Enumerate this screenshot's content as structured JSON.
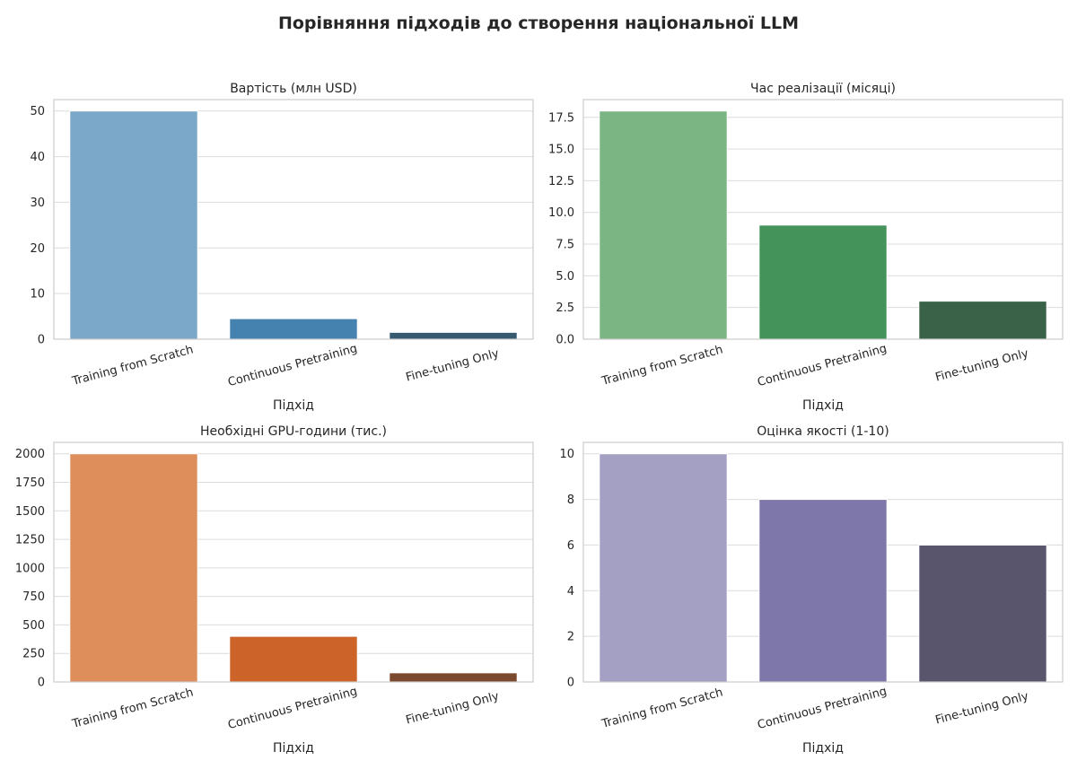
{
  "figure": {
    "title": "Порівняння підходів до створення національної LLM"
  },
  "chart_data": [
    {
      "type": "bar",
      "title": "Вартість (млн USD)",
      "xlabel": "Підхід",
      "ylabel": "",
      "categories": [
        "Training from Scratch",
        "Continuous Pretraining",
        "Fine-tuning Only"
      ],
      "values": [
        50,
        4.5,
        1.5
      ],
      "ylim": [
        0,
        52.5
      ],
      "yticks": [
        0,
        10,
        20,
        30,
        40,
        50
      ],
      "ytick_labels": [
        "0",
        "10",
        "20",
        "30",
        "40",
        "50"
      ],
      "colors": [
        "#7ba8c8",
        "#4682b0",
        "#385a70"
      ],
      "grid": true
    },
    {
      "type": "bar",
      "title": "Час реалізації (місяці)",
      "xlabel": "Підхід",
      "ylabel": "",
      "categories": [
        "Training from Scratch",
        "Continuous Pretraining",
        "Fine-tuning Only"
      ],
      "values": [
        18,
        9,
        3
      ],
      "ylim": [
        0,
        18.9
      ],
      "yticks": [
        0,
        2.5,
        5,
        7.5,
        10,
        12.5,
        15,
        17.5
      ],
      "ytick_labels": [
        "0.0",
        "2.5",
        "5.0",
        "7.5",
        "10.0",
        "12.5",
        "15.0",
        "17.5"
      ],
      "colors": [
        "#7bb583",
        "#44935a",
        "#3a6248"
      ],
      "grid": true
    },
    {
      "type": "bar",
      "title": "Необхідні GPU-години (тис.)",
      "xlabel": "Підхід",
      "ylabel": "",
      "categories": [
        "Training from Scratch",
        "Continuous Pretraining",
        "Fine-tuning Only"
      ],
      "values": [
        2000,
        400,
        80
      ],
      "ylim": [
        0,
        2100
      ],
      "yticks": [
        0,
        250,
        500,
        750,
        1000,
        1250,
        1500,
        1750,
        2000
      ],
      "ytick_labels": [
        "0",
        "250",
        "500",
        "750",
        "1000",
        "1250",
        "1500",
        "1750",
        "2000"
      ],
      "colors": [
        "#de8e5b",
        "#cc6429",
        "#7b4a2e"
      ],
      "grid": true
    },
    {
      "type": "bar",
      "title": "Оцінка якості (1-10)",
      "xlabel": "Підхід",
      "ylabel": "",
      "categories": [
        "Training from Scratch",
        "Continuous Pretraining",
        "Fine-tuning Only"
      ],
      "values": [
        10,
        8,
        6
      ],
      "ylim": [
        0,
        10.5
      ],
      "yticks": [
        0,
        2,
        4,
        6,
        8,
        10
      ],
      "ytick_labels": [
        "0",
        "2",
        "4",
        "6",
        "8",
        "10"
      ],
      "colors": [
        "#a4a0c4",
        "#7e77aa",
        "#59556d"
      ],
      "grid": true
    }
  ]
}
